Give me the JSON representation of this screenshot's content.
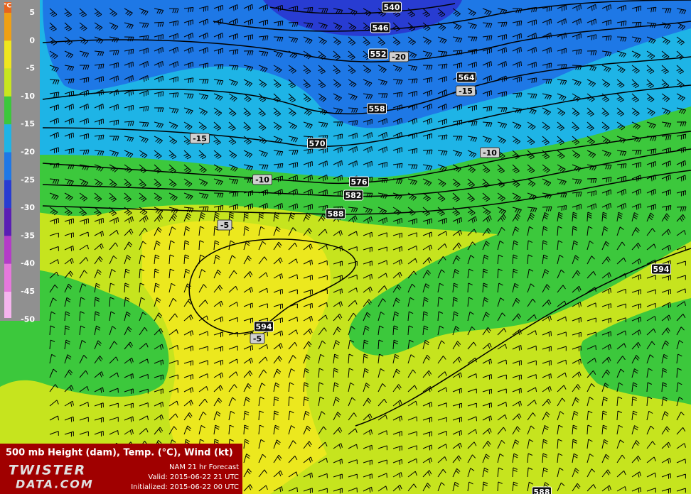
{
  "legend": {
    "unit": "°C",
    "labels": [
      "5",
      "0",
      "-5",
      "-10",
      "-15",
      "-20",
      "-25",
      "-30",
      "-35",
      "-40",
      "-45",
      "-50"
    ],
    "colors": [
      "#e8641e",
      "#f0a014",
      "#f0e61e",
      "#c8e61e",
      "#3cc83c",
      "#1eb4e6",
      "#1e78e6",
      "#283cd2",
      "#5a1eb4",
      "#b43cc8",
      "#e678dc",
      "#f5b4ee",
      "#ffffff"
    ]
  },
  "height_labels": [
    "540",
    "546",
    "552",
    "564",
    "558",
    "570",
    "576",
    "582",
    "588",
    "594",
    "594",
    "588"
  ],
  "temperature_labels": [
    "-20",
    "-15",
    "-15",
    "-10",
    "-10",
    "-5",
    "-5"
  ],
  "footer": {
    "title": "500 mb Height (dam), Temp. (°C), Wind (kt)",
    "logo_top": "TWISTER",
    "logo_bottom": "DATA.COM",
    "model": "NAM 21 hr Forecast",
    "valid": "Valid: 2015-06-22 21 UTC",
    "initialized": "Initialized: 2015-06-22 00 UTC"
  }
}
